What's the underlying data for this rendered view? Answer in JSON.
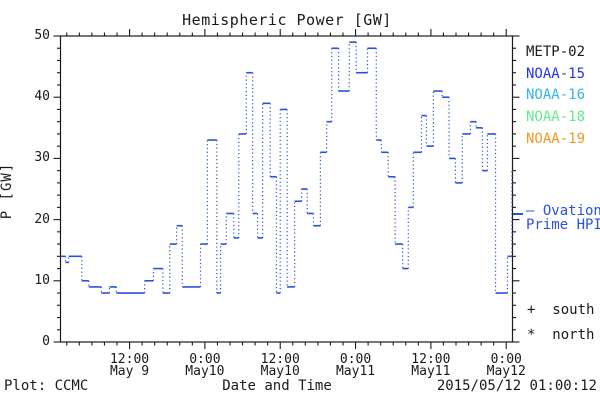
{
  "header": {
    "title": "Hemispheric Power [GW]"
  },
  "footer": {
    "plot_credit": "Plot: CCMC",
    "x_axis_title": "Date and Time",
    "timestamp": "2015/05/12 01:00:12"
  },
  "legend": {
    "satellites": [
      {
        "label": "METP-02",
        "color": "#1a1a1a"
      },
      {
        "label": "NOAA-15",
        "color": "#2135e8"
      },
      {
        "label": "NOAA-16",
        "color": "#35b5e8"
      },
      {
        "label": "NOAA-18",
        "color": "#67e98b"
      },
      {
        "label": "NOAA-19",
        "color": "#ef9a28"
      }
    ],
    "ovation": {
      "line1": "— Ovation",
      "line2": "Prime HPI",
      "color": "#2a52dc"
    },
    "markers": [
      {
        "symbol": "+",
        "label": "south"
      },
      {
        "symbol": "*",
        "label": "north"
      }
    ]
  },
  "chart_data": {
    "type": "line",
    "subtype": "stepped time series: solid horizontal value segments joined by dotted vertical connectors",
    "title": "Hemispheric Power [GW]",
    "xlabel": "Date and Time",
    "ylabel": "P [GW]",
    "ylim": [
      0,
      50
    ],
    "y_major_ticks": [
      0,
      10,
      20,
      30,
      40,
      50
    ],
    "y_minor_step": 2,
    "x_minor_step_hours": 2,
    "x_range_hours": [
      1,
      73
    ],
    "x_ticks": [
      {
        "hour": 12,
        "time": "12:00",
        "date": "May 9"
      },
      {
        "hour": 24,
        "time": "0:00",
        "date": "May10"
      },
      {
        "hour": 36,
        "time": "12:00",
        "date": "May10"
      },
      {
        "hour": 48,
        "time": "0:00",
        "date": "May11"
      },
      {
        "hour": 60,
        "time": "12:00",
        "date": "May11"
      },
      {
        "hour": 72,
        "time": "0:00",
        "date": "May12"
      }
    ],
    "grid": false,
    "legend_position": "right-outside",
    "series": [
      {
        "name": "Ovation Prime HPI",
        "units": "GW",
        "color": "#2a52dc",
        "segments_t0_t1_value": [
          [
            1.0,
            1.8,
            14
          ],
          [
            1.8,
            2.3,
            13
          ],
          [
            2.3,
            4.4,
            14
          ],
          [
            4.4,
            5.5,
            10
          ],
          [
            5.5,
            7.5,
            9
          ],
          [
            7.5,
            8.8,
            8
          ],
          [
            8.8,
            9.9,
            9
          ],
          [
            9.9,
            14.4,
            8
          ],
          [
            14.4,
            15.8,
            10
          ],
          [
            15.8,
            17.3,
            12
          ],
          [
            17.3,
            18.4,
            8
          ],
          [
            18.4,
            19.5,
            16
          ],
          [
            19.5,
            20.4,
            19
          ],
          [
            20.4,
            23.3,
            9
          ],
          [
            23.3,
            24.4,
            16
          ],
          [
            24.4,
            25.9,
            33
          ],
          [
            25.9,
            26.5,
            8
          ],
          [
            26.5,
            27.4,
            16
          ],
          [
            27.4,
            28.6,
            21
          ],
          [
            28.6,
            29.4,
            17
          ],
          [
            29.4,
            30.6,
            34
          ],
          [
            30.6,
            31.6,
            44
          ],
          [
            31.6,
            32.4,
            21
          ],
          [
            32.4,
            33.2,
            17
          ],
          [
            33.2,
            34.4,
            39
          ],
          [
            34.4,
            35.4,
            27
          ],
          [
            35.4,
            36.0,
            8
          ],
          [
            36.0,
            37.1,
            38
          ],
          [
            37.1,
            38.3,
            9
          ],
          [
            38.3,
            39.4,
            23
          ],
          [
            39.4,
            40.3,
            25
          ],
          [
            40.3,
            41.3,
            21
          ],
          [
            41.3,
            42.4,
            19
          ],
          [
            42.4,
            43.4,
            31
          ],
          [
            43.4,
            44.2,
            36
          ],
          [
            44.2,
            45.3,
            48
          ],
          [
            45.3,
            47.0,
            41
          ],
          [
            47.0,
            48.1,
            49
          ],
          [
            48.1,
            49.9,
            44
          ],
          [
            49.9,
            51.3,
            48
          ],
          [
            51.3,
            52.1,
            33
          ],
          [
            52.1,
            53.2,
            31
          ],
          [
            53.2,
            54.3,
            27
          ],
          [
            54.3,
            55.5,
            16
          ],
          [
            55.5,
            56.4,
            12
          ],
          [
            56.4,
            57.2,
            22
          ],
          [
            57.2,
            58.5,
            31
          ],
          [
            58.5,
            59.3,
            37
          ],
          [
            59.3,
            60.4,
            32
          ],
          [
            60.4,
            61.8,
            41
          ],
          [
            61.8,
            62.9,
            40
          ],
          [
            62.9,
            63.9,
            30
          ],
          [
            63.9,
            65.0,
            26
          ],
          [
            65.0,
            66.3,
            34
          ],
          [
            66.3,
            67.2,
            36
          ],
          [
            67.2,
            68.2,
            35
          ],
          [
            68.2,
            69.0,
            28
          ],
          [
            69.0,
            70.3,
            34
          ],
          [
            70.3,
            72.2,
            8
          ],
          [
            72.2,
            72.9,
            14
          ],
          [
            72.9,
            73.0,
            28
          ]
        ]
      }
    ]
  }
}
